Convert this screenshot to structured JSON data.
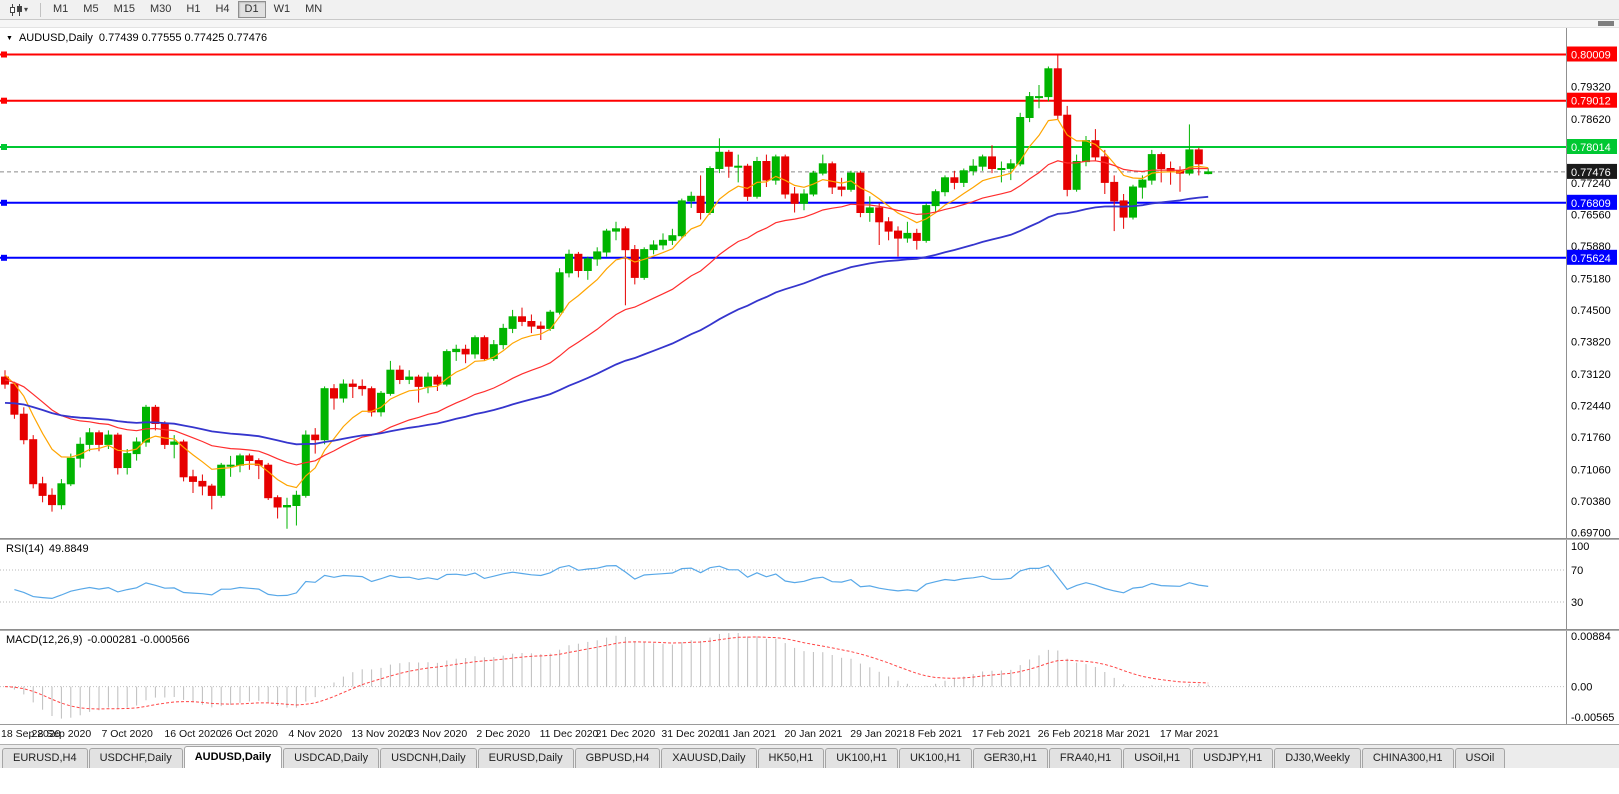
{
  "toolbar": {
    "timeframes": [
      "M1",
      "M5",
      "M15",
      "M30",
      "H1",
      "H4",
      "D1",
      "W1",
      "MN"
    ],
    "active_timeframe": "D1"
  },
  "chart_header": {
    "symbol": "AUDUSD,Daily",
    "ohlc": "0.77439 0.77555 0.77425 0.77476"
  },
  "price_axis": {
    "labels": [
      "0.79320",
      "0.78620",
      "0.77240",
      "0.76560",
      "0.75880",
      "0.75180",
      "0.74500",
      "0.73820",
      "0.73120",
      "0.72440",
      "0.71760",
      "0.71060",
      "0.70380",
      "0.69700"
    ]
  },
  "hlines": [
    {
      "label": "0.80009",
      "price": 0.80009,
      "color": "#FF0000",
      "kind": "resistance"
    },
    {
      "label": "0.79012",
      "price": 0.79012,
      "color": "#FF0000",
      "kind": "resistance"
    },
    {
      "label": "0.78014",
      "price": 0.78014,
      "color": "#00C832",
      "kind": "level"
    },
    {
      "label": "0.76809",
      "price": 0.76809,
      "color": "#0000FF",
      "kind": "support"
    },
    {
      "label": "0.75624",
      "price": 0.75624,
      "color": "#0000FF",
      "kind": "support"
    }
  ],
  "current_price": {
    "label": "0.77476",
    "price": 0.77476,
    "tag_color": "#1a1a1a"
  },
  "indicator_panels": {
    "rsi": {
      "title": "RSI(14)",
      "value": "49.8849",
      "axis_labels": [
        "100",
        "70",
        "30"
      ]
    },
    "macd": {
      "title": "MACD(12,26,9)",
      "values": "-0.000281 -0.000566",
      "axis_labels": [
        "0.00884",
        "0.00",
        "-0.00565"
      ]
    }
  },
  "date_axis": [
    {
      "text": "18 Sep 2020",
      "index": 0
    },
    {
      "text": "28 Sep 2020",
      "index": 6
    },
    {
      "text": "7 Oct 2020",
      "index": 13
    },
    {
      "text": "16 Oct 2020",
      "index": 20
    },
    {
      "text": "26 Oct 2020",
      "index": 26
    },
    {
      "text": "4 Nov 2020",
      "index": 33
    },
    {
      "text": "13 Nov 2020",
      "index": 40
    },
    {
      "text": "23 Nov 2020",
      "index": 46
    },
    {
      "text": "2 Dec 2020",
      "index": 53
    },
    {
      "text": "11 Dec 2020",
      "index": 60
    },
    {
      "text": "21 Dec 2020",
      "index": 66
    },
    {
      "text": "31 Dec 2020",
      "index": 73
    },
    {
      "text": "11 Jan 2021",
      "index": 79
    },
    {
      "text": "20 Jan 2021",
      "index": 86
    },
    {
      "text": "29 Jan 2021",
      "index": 93
    },
    {
      "text": "8 Feb 2021",
      "index": 99
    },
    {
      "text": "17 Feb 2021",
      "index": 106
    },
    {
      "text": "26 Feb 2021",
      "index": 113
    },
    {
      "text": "8 Mar 2021",
      "index": 119
    },
    {
      "text": "17 Mar 2021",
      "index": 126
    }
  ],
  "tabs": {
    "items": [
      "EURUSD,H4",
      "USDCHF,Daily",
      "AUDUSD,Daily",
      "USDCAD,Daily",
      "USDCNH,Daily",
      "EURUSD,Daily",
      "GBPUSD,H4",
      "XAUUSD,Daily",
      "HK50,H1",
      "UK100,H1",
      "UK100,H1",
      "GER30,H1",
      "FRA40,H1",
      "USOil,H1",
      "USDJPY,H1",
      "DJ30,Weekly",
      "CHINA300,H1",
      "USOil"
    ],
    "active_index": 2
  },
  "chart_data": {
    "type": "candlestick",
    "symbol": "AUDUSD",
    "timeframe": "Daily",
    "ylim": [
      0.6958,
      0.8058
    ],
    "up_color": "#00B400",
    "down_color": "#E60000",
    "moving_averages": [
      {
        "period": 8,
        "color": "#FFA500",
        "width": 1.2,
        "init": 0.7315
      },
      {
        "period": 25,
        "color": "#FF2D2D",
        "width": 1.2,
        "init": 0.73
      },
      {
        "period": 60,
        "color": "#3535CD",
        "width": 1.8,
        "init": 0.7248
      }
    ],
    "rsi": {
      "period": 14,
      "color": "#58A8E8",
      "levels": [
        70,
        30
      ],
      "current": 49.8849
    },
    "macd": {
      "fast": 12,
      "slow": 26,
      "signal": 9,
      "hist_color": "#BDBDBD",
      "signal_color": "#FF4545",
      "ylim": [
        -0.00565,
        0.00884
      ],
      "current_main": -0.000281,
      "current_signal": -0.000566
    },
    "candles": [
      [
        0.7305,
        0.732,
        0.728,
        0.729
      ],
      [
        0.729,
        0.7295,
        0.7215,
        0.7225
      ],
      [
        0.7225,
        0.724,
        0.716,
        0.717
      ],
      [
        0.717,
        0.718,
        0.7065,
        0.7075
      ],
      [
        0.7075,
        0.709,
        0.7035,
        0.705
      ],
      [
        0.705,
        0.7065,
        0.7015,
        0.703
      ],
      [
        0.703,
        0.7085,
        0.702,
        0.7075
      ],
      [
        0.7075,
        0.714,
        0.707,
        0.713
      ],
      [
        0.713,
        0.7175,
        0.711,
        0.716
      ],
      [
        0.716,
        0.7195,
        0.7145,
        0.7185
      ],
      [
        0.7185,
        0.719,
        0.7145,
        0.716
      ],
      [
        0.716,
        0.719,
        0.715,
        0.718
      ],
      [
        0.718,
        0.7185,
        0.7095,
        0.711
      ],
      [
        0.711,
        0.715,
        0.7095,
        0.714
      ],
      [
        0.714,
        0.7175,
        0.7125,
        0.7165
      ],
      [
        0.7165,
        0.7245,
        0.7155,
        0.724
      ],
      [
        0.724,
        0.7245,
        0.719,
        0.7205
      ],
      [
        0.7205,
        0.721,
        0.715,
        0.716
      ],
      [
        0.716,
        0.718,
        0.713,
        0.7165
      ],
      [
        0.7165,
        0.717,
        0.708,
        0.709
      ],
      [
        0.709,
        0.7105,
        0.7055,
        0.708
      ],
      [
        0.708,
        0.7095,
        0.705,
        0.707
      ],
      [
        0.707,
        0.7075,
        0.702,
        0.705
      ],
      [
        0.705,
        0.712,
        0.7045,
        0.7115
      ],
      [
        0.7115,
        0.7135,
        0.709,
        0.7115
      ],
      [
        0.7115,
        0.714,
        0.71,
        0.7135
      ],
      [
        0.7135,
        0.714,
        0.7105,
        0.7125
      ],
      [
        0.7125,
        0.713,
        0.7085,
        0.7115
      ],
      [
        0.7115,
        0.712,
        0.704,
        0.7045
      ],
      [
        0.7045,
        0.705,
        0.7,
        0.7025
      ],
      [
        0.7025,
        0.7045,
        0.6978,
        0.7028
      ],
      [
        0.7028,
        0.706,
        0.6985,
        0.705
      ],
      [
        0.705,
        0.719,
        0.7045,
        0.718
      ],
      [
        0.718,
        0.7195,
        0.714,
        0.717
      ],
      [
        0.717,
        0.7285,
        0.716,
        0.728
      ],
      [
        0.728,
        0.729,
        0.7235,
        0.726
      ],
      [
        0.726,
        0.73,
        0.725,
        0.729
      ],
      [
        0.729,
        0.73,
        0.726,
        0.7285
      ],
      [
        0.7285,
        0.73,
        0.7265,
        0.728
      ],
      [
        0.728,
        0.7285,
        0.722,
        0.723
      ],
      [
        0.723,
        0.7275,
        0.722,
        0.727
      ],
      [
        0.727,
        0.734,
        0.7265,
        0.732
      ],
      [
        0.732,
        0.733,
        0.729,
        0.73
      ],
      [
        0.73,
        0.732,
        0.729,
        0.7305
      ],
      [
        0.7305,
        0.731,
        0.725,
        0.7285
      ],
      [
        0.7285,
        0.7315,
        0.727,
        0.7305
      ],
      [
        0.7305,
        0.731,
        0.7275,
        0.729
      ],
      [
        0.729,
        0.7365,
        0.7285,
        0.736
      ],
      [
        0.736,
        0.7375,
        0.734,
        0.7365
      ],
      [
        0.7365,
        0.7375,
        0.7335,
        0.7355
      ],
      [
        0.7355,
        0.7395,
        0.7345,
        0.739
      ],
      [
        0.739,
        0.7395,
        0.734,
        0.7345
      ],
      [
        0.7345,
        0.7385,
        0.734,
        0.7375
      ],
      [
        0.7375,
        0.742,
        0.7365,
        0.741
      ],
      [
        0.741,
        0.745,
        0.74,
        0.7435
      ],
      [
        0.7435,
        0.7455,
        0.7415,
        0.7425
      ],
      [
        0.7425,
        0.744,
        0.74,
        0.7415
      ],
      [
        0.7415,
        0.7425,
        0.7385,
        0.741
      ],
      [
        0.741,
        0.745,
        0.7405,
        0.7445
      ],
      [
        0.7445,
        0.754,
        0.744,
        0.753
      ],
      [
        0.753,
        0.758,
        0.752,
        0.757
      ],
      [
        0.757,
        0.7575,
        0.752,
        0.7535
      ],
      [
        0.7535,
        0.7565,
        0.7515,
        0.756
      ],
      [
        0.756,
        0.7585,
        0.7545,
        0.7575
      ],
      [
        0.7575,
        0.7625,
        0.7565,
        0.762
      ],
      [
        0.762,
        0.764,
        0.76,
        0.7625
      ],
      [
        0.7625,
        0.763,
        0.746,
        0.758
      ],
      [
        0.758,
        0.759,
        0.7505,
        0.752
      ],
      [
        0.752,
        0.7585,
        0.7515,
        0.758
      ],
      [
        0.758,
        0.76,
        0.757,
        0.759
      ],
      [
        0.759,
        0.7615,
        0.758,
        0.76
      ],
      [
        0.76,
        0.7625,
        0.759,
        0.761
      ],
      [
        0.761,
        0.769,
        0.7605,
        0.7685
      ],
      [
        0.7685,
        0.7705,
        0.767,
        0.7695
      ],
      [
        0.7695,
        0.774,
        0.7645,
        0.766
      ],
      [
        0.766,
        0.776,
        0.7655,
        0.7755
      ],
      [
        0.7755,
        0.782,
        0.7745,
        0.779
      ],
      [
        0.779,
        0.7795,
        0.7735,
        0.776
      ],
      [
        0.776,
        0.7785,
        0.7725,
        0.776
      ],
      [
        0.776,
        0.7765,
        0.7685,
        0.7695
      ],
      [
        0.7695,
        0.778,
        0.769,
        0.777
      ],
      [
        0.777,
        0.7785,
        0.7715,
        0.773
      ],
      [
        0.773,
        0.7785,
        0.772,
        0.778
      ],
      [
        0.778,
        0.7785,
        0.769,
        0.77
      ],
      [
        0.77,
        0.7715,
        0.766,
        0.768
      ],
      [
        0.768,
        0.771,
        0.7665,
        0.77
      ],
      [
        0.77,
        0.775,
        0.7695,
        0.7745
      ],
      [
        0.7745,
        0.7785,
        0.774,
        0.7765
      ],
      [
        0.7765,
        0.777,
        0.77,
        0.7715
      ],
      [
        0.7715,
        0.7735,
        0.7695,
        0.771
      ],
      [
        0.771,
        0.775,
        0.7705,
        0.7745
      ],
      [
        0.7745,
        0.775,
        0.765,
        0.766
      ],
      [
        0.766,
        0.7695,
        0.764,
        0.767
      ],
      [
        0.767,
        0.768,
        0.759,
        0.764
      ],
      [
        0.764,
        0.765,
        0.76,
        0.762
      ],
      [
        0.762,
        0.763,
        0.7565,
        0.7605
      ],
      [
        0.7605,
        0.764,
        0.7595,
        0.7615
      ],
      [
        0.7615,
        0.7625,
        0.758,
        0.76
      ],
      [
        0.76,
        0.768,
        0.7595,
        0.7675
      ],
      [
        0.7675,
        0.771,
        0.766,
        0.7705
      ],
      [
        0.7705,
        0.774,
        0.7695,
        0.7735
      ],
      [
        0.7735,
        0.775,
        0.771,
        0.7725
      ],
      [
        0.7725,
        0.7755,
        0.7715,
        0.775
      ],
      [
        0.775,
        0.7775,
        0.774,
        0.776
      ],
      [
        0.776,
        0.7785,
        0.775,
        0.778
      ],
      [
        0.778,
        0.7805,
        0.7745,
        0.7755
      ],
      [
        0.7755,
        0.777,
        0.7725,
        0.7755
      ],
      [
        0.7755,
        0.7775,
        0.773,
        0.7765
      ],
      [
        0.7765,
        0.7875,
        0.776,
        0.7865
      ],
      [
        0.7865,
        0.792,
        0.7855,
        0.791
      ],
      [
        0.791,
        0.7935,
        0.7885,
        0.791
      ],
      [
        0.791,
        0.7975,
        0.79,
        0.797
      ],
      [
        0.797,
        0.8001,
        0.786,
        0.787
      ],
      [
        0.787,
        0.789,
        0.7695,
        0.771
      ],
      [
        0.771,
        0.7785,
        0.7705,
        0.777
      ],
      [
        0.777,
        0.7825,
        0.776,
        0.7815
      ],
      [
        0.7815,
        0.784,
        0.777,
        0.778
      ],
      [
        0.778,
        0.7795,
        0.77,
        0.7725
      ],
      [
        0.7725,
        0.774,
        0.762,
        0.7685
      ],
      [
        0.7685,
        0.77,
        0.7625,
        0.765
      ],
      [
        0.765,
        0.772,
        0.7645,
        0.7715
      ],
      [
        0.7715,
        0.774,
        0.769,
        0.773
      ],
      [
        0.773,
        0.7795,
        0.772,
        0.7785
      ],
      [
        0.7785,
        0.779,
        0.7725,
        0.7755
      ],
      [
        0.7755,
        0.777,
        0.772,
        0.775
      ],
      [
        0.775,
        0.776,
        0.7705,
        0.7745
      ],
      [
        0.7745,
        0.785,
        0.774,
        0.7795
      ],
      [
        0.7795,
        0.78,
        0.774,
        0.7765
      ],
      [
        0.77439,
        0.77555,
        0.77425,
        0.77476
      ]
    ]
  }
}
